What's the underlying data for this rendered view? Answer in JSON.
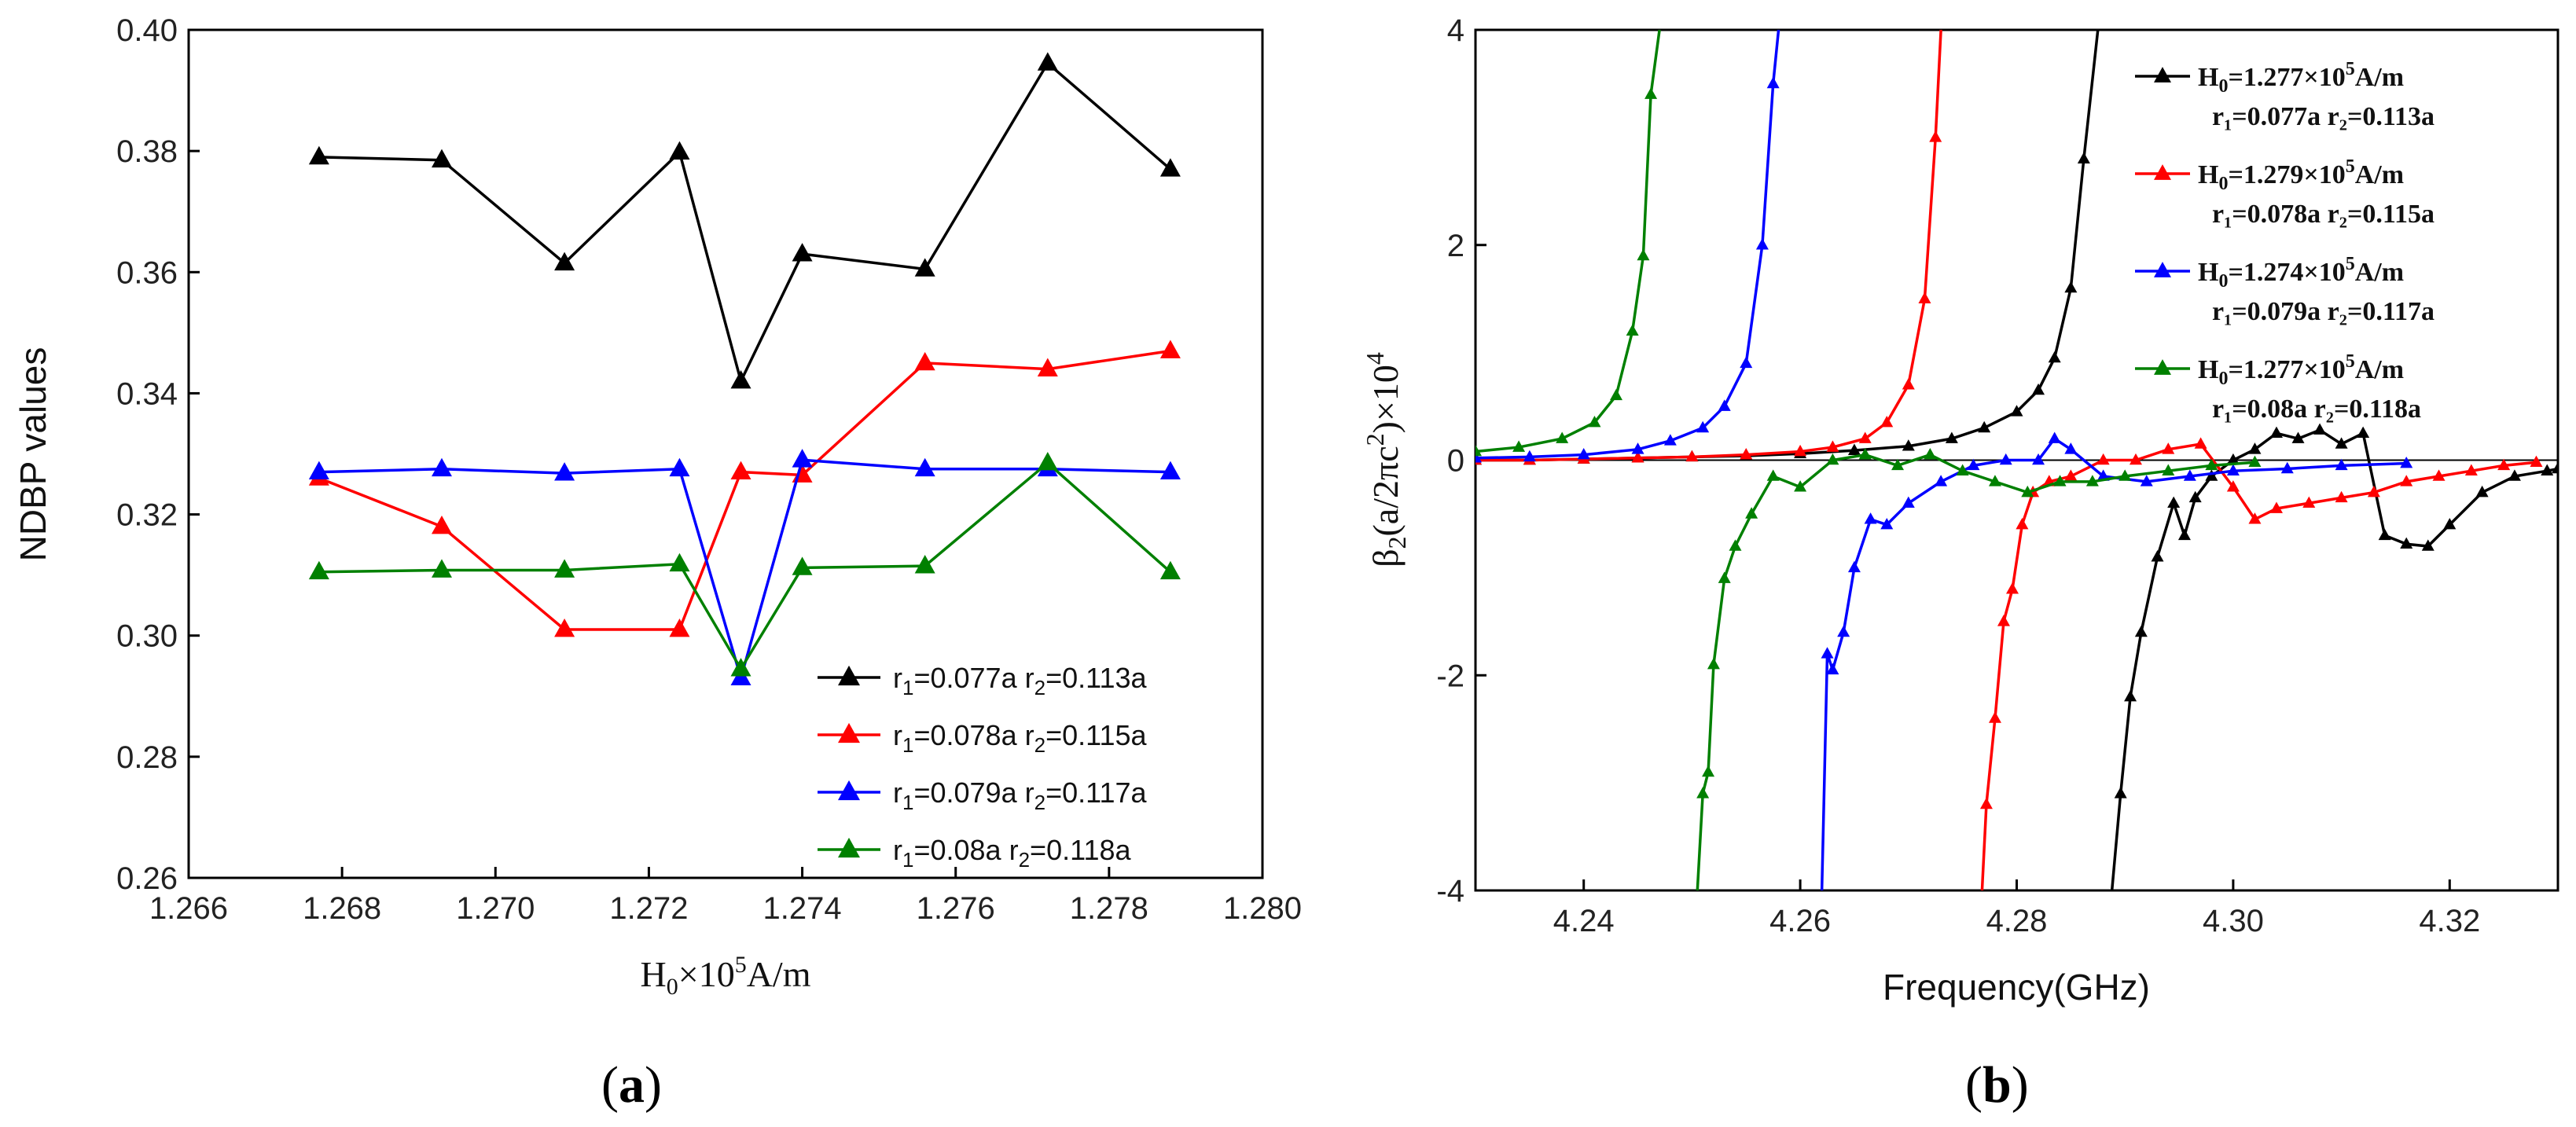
{
  "chart_data": [
    {
      "panel": "a",
      "type": "line",
      "xlabel_main": "H",
      "xlabel_sub": "0",
      "xlabel_mid": "×10",
      "xlabel_sup": "5",
      "xlabel_tail": "A/m",
      "ylabel": "NDBP values",
      "xlim": [
        1.266,
        1.28
      ],
      "ylim": [
        0.26,
        0.4
      ],
      "xticks": [
        1.266,
        1.268,
        1.27,
        1.272,
        1.274,
        1.276,
        1.278,
        1.28
      ],
      "yticks": [
        0.26,
        0.28,
        0.3,
        0.32,
        0.34,
        0.36,
        0.38,
        0.4
      ],
      "x": [
        1.2677,
        1.2693,
        1.2709,
        1.2724,
        1.2732,
        1.274,
        1.2756,
        1.2772,
        1.2788
      ],
      "series": [
        {
          "name": "r1=0.077a r2=0.113a",
          "color": "#000000",
          "values": [
            0.379,
            0.3785,
            0.3615,
            0.3798,
            0.342,
            0.363,
            0.3605,
            0.3945,
            0.377
          ]
        },
        {
          "name": "r1=0.078a r2=0.115a",
          "color": "#ff0000",
          "values": [
            0.326,
            0.318,
            0.301,
            0.301,
            0.327,
            0.3265,
            0.345,
            0.344,
            0.347
          ]
        },
        {
          "name": "r1=0.079a r2=0.117a",
          "color": "#0000ff",
          "values": [
            0.327,
            0.3275,
            0.3268,
            0.3275,
            0.293,
            0.329,
            0.3275,
            0.3275,
            0.327
          ]
        },
        {
          "name": "r1=0.08a r2=0.118a",
          "color": "#008000",
          "values": [
            0.3105,
            0.3108,
            0.3108,
            0.3118,
            0.2945,
            0.3112,
            0.3115,
            0.3285,
            0.3105
          ]
        }
      ],
      "legend": [
        {
          "r1": "r",
          "s1": "1",
          "v1": "=0.077a r",
          "s2": "2",
          "v2": "=0.113a"
        },
        {
          "r1": "r",
          "s1": "1",
          "v1": "=0.078a r",
          "s2": "2",
          "v2": "=0.115a"
        },
        {
          "r1": "r",
          "s1": "1",
          "v1": "=0.079a r",
          "s2": "2",
          "v2": "=0.117a"
        },
        {
          "r1": "r",
          "s1": "1",
          "v1": "=0.08a   r",
          "s2": "2",
          "v2": "=0.118a"
        }
      ],
      "legend_position": "lower-right"
    },
    {
      "panel": "b",
      "type": "line",
      "xlabel": "Frequency(GHz)",
      "ylabel_pre": "β",
      "ylabel_sub": "2",
      "ylabel_mid": "(a/2πc",
      "ylabel_sup": "2",
      "ylabel_post": ")×10",
      "ylabel_sup2": "4",
      "xlim": [
        4.23,
        4.33
      ],
      "ylim": [
        -4,
        4
      ],
      "xticks": [
        4.24,
        4.26,
        4.28,
        4.3,
        4.32
      ],
      "yticks": [
        -4,
        -2,
        0,
        2,
        4
      ],
      "series": [
        {
          "name": "H0=1.277×10^5A/m r1=0.077a r2=0.113a",
          "color": "#000000",
          "x": [
            4.23,
            4.235,
            4.24,
            4.245,
            4.25,
            4.255,
            4.26,
            4.265,
            4.27,
            4.274,
            4.277,
            4.28,
            4.282,
            4.2835,
            4.285,
            4.2862,
            4.2875,
            4.2882,
            4.2888,
            4.2896,
            4.2905,
            4.2915,
            4.293,
            4.2945,
            4.2955,
            4.2965,
            4.298,
            4.3,
            4.302,
            4.304,
            4.306,
            4.308,
            4.31,
            4.312,
            4.314,
            4.316,
            4.318,
            4.32,
            4.323,
            4.326,
            4.329,
            4.33
          ],
          "y": [
            0,
            0,
            0.01,
            0.02,
            0.03,
            0.04,
            0.06,
            0.09,
            0.13,
            0.2,
            0.3,
            0.45,
            0.65,
            0.95,
            1.6,
            2.8,
            4.0,
            null,
            -4.0,
            -3.1,
            -2.2,
            -1.6,
            -0.9,
            -0.4,
            -0.7,
            -0.35,
            -0.15,
            0.0,
            0.1,
            0.25,
            0.2,
            0.28,
            0.15,
            0.25,
            -0.7,
            -0.78,
            -0.8,
            -0.6,
            -0.3,
            -0.15,
            -0.1,
            -0.08
          ]
        },
        {
          "name": "H0=1.279×10^5A/m r1=0.078a r2=0.115a",
          "color": "#ff0000",
          "x": [
            4.23,
            4.235,
            4.24,
            4.245,
            4.25,
            4.255,
            4.26,
            4.263,
            4.266,
            4.268,
            4.27,
            4.2715,
            4.2725,
            4.273,
            null,
            4.2768,
            4.2772,
            4.278,
            4.2788,
            4.2796,
            4.2805,
            4.2815,
            4.283,
            4.285,
            4.288,
            4.291,
            4.294,
            4.297,
            4.3,
            4.302,
            4.304,
            4.307,
            4.31,
            4.313,
            4.316,
            4.319,
            4.322,
            4.325,
            4.328
          ],
          "y": [
            0,
            0,
            0.01,
            0.02,
            0.03,
            0.05,
            0.08,
            0.12,
            0.2,
            0.35,
            0.7,
            1.5,
            3.0,
            4.0,
            null,
            -4.0,
            -3.2,
            -2.4,
            -1.5,
            -1.2,
            -0.6,
            -0.3,
            -0.2,
            -0.15,
            0.0,
            0.0,
            0.1,
            0.15,
            -0.25,
            -0.55,
            -0.45,
            -0.4,
            -0.35,
            -0.3,
            -0.2,
            -0.15,
            -0.1,
            -0.05,
            -0.02
          ]
        },
        {
          "name": "H0=1.274×10^5A/m r1=0.079a r2=0.117a",
          "color": "#0000ff",
          "x": [
            4.23,
            4.235,
            4.24,
            4.245,
            4.248,
            4.251,
            4.253,
            4.255,
            4.2565,
            4.2575,
            4.258,
            null,
            4.262,
            4.2625,
            4.263,
            4.264,
            4.265,
            4.2665,
            4.268,
            4.27,
            4.273,
            4.276,
            4.279,
            4.282,
            4.2835,
            4.285,
            4.288,
            4.292,
            4.296,
            4.3,
            4.305,
            4.31,
            4.316
          ],
          "y": [
            0.02,
            0.03,
            0.05,
            0.1,
            0.18,
            0.3,
            0.5,
            0.9,
            2.0,
            3.5,
            4.0,
            null,
            -4.0,
            -1.8,
            -1.95,
            -1.6,
            -1.0,
            -0.55,
            -0.6,
            -0.4,
            -0.2,
            -0.05,
            0.0,
            0.0,
            0.2,
            0.1,
            -0.15,
            -0.2,
            -0.15,
            -0.1,
            -0.08,
            -0.05,
            -0.03
          ]
        },
        {
          "name": "H0=1.277×10^5A/m r1=0.08a r2=0.118a",
          "color": "#008000",
          "x": [
            4.23,
            4.234,
            4.238,
            4.241,
            4.243,
            4.2445,
            4.2455,
            4.2462,
            4.247,
            null,
            4.2505,
            4.251,
            4.2515,
            4.252,
            4.253,
            4.254,
            4.2555,
            4.2575,
            4.26,
            4.263,
            4.266,
            4.269,
            4.272,
            4.275,
            4.278,
            4.281,
            4.284,
            4.287,
            4.29,
            4.294,
            4.298,
            4.302
          ],
          "y": [
            0.08,
            0.12,
            0.2,
            0.35,
            0.6,
            1.2,
            1.9,
            3.4,
            4.0,
            null,
            -4.0,
            -3.1,
            -2.9,
            -1.9,
            -1.1,
            -0.8,
            -0.5,
            -0.15,
            -0.25,
            0.0,
            0.05,
            -0.05,
            0.05,
            -0.1,
            -0.2,
            -0.3,
            -0.2,
            -0.2,
            -0.15,
            -0.1,
            -0.05,
            -0.02
          ]
        }
      ],
      "legend": [
        {
          "line1_pre": "H",
          "line1_sub": "0",
          "line1_mid": "=1.277×10",
          "line1_sup": "5",
          "line1_post": "A/m",
          "line2": "r₁=0.077a r₂=0.113a"
        },
        {
          "line1_pre": "H",
          "line1_sub": "0",
          "line1_mid": "=1.279×10",
          "line1_sup": "5",
          "line1_post": "A/m",
          "line2": "r₁=0.078a r₂=0.115a"
        },
        {
          "line1_pre": "H",
          "line1_sub": "0",
          "line1_mid": "=1.274×10",
          "line1_sup": "5",
          "line1_post": "A/m",
          "line2": "r₁=0.079a r₂=0.117a"
        },
        {
          "line1_pre": "H",
          "line1_sub": "0",
          "line1_mid": "=1.277×10",
          "line1_sup": "5",
          "line1_post": "A/m",
          "line2": "r₁=0.08a    r₂=0.118a"
        }
      ],
      "legend_position": "top-right"
    }
  ],
  "panel_labels": {
    "a_open": "(",
    "a": "a",
    "a_close": ")",
    "b_open": "(",
    "b": "b",
    "b_close": ")"
  }
}
